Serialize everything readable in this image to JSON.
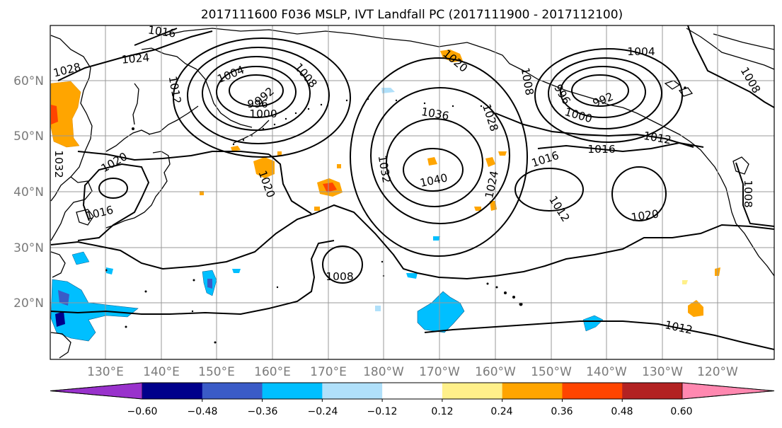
{
  "title": "2017111600 F036 MSLP, IVT Landfall PC (2017111900 - 2017112100)",
  "lat_labels": [
    "60°N",
    "50°N",
    "40°N",
    "30°N",
    "20°N"
  ],
  "lon_labels": [
    "130°E",
    "140°E",
    "150°E",
    "160°E",
    "170°E",
    "180°W",
    "170°W",
    "160°W",
    "150°W",
    "140°W",
    "130°W",
    "120°W"
  ],
  "colorbar": {
    "colors": [
      "#9932cc",
      "#00008b",
      "#3a5bc7",
      "#00bfff",
      "#b0e0fa",
      "#ffffff",
      "#fff08a",
      "#ffa500",
      "#ff4500",
      "#b22222",
      "#ff88b0"
    ],
    "ticks": [
      "−0.60",
      "−0.48",
      "−0.36",
      "−0.24",
      "−0.12",
      "0.12",
      "0.24",
      "0.36",
      "0.48",
      "0.60"
    ]
  },
  "contour_labels": {
    "c1016_top": "1016",
    "c1024": "1024",
    "c1028": "1028",
    "c1004_a": "1004",
    "c1008_a": "1008",
    "c992_a": "992",
    "c996_a": "996",
    "c1000_a": "1000",
    "c1012_a": "1012",
    "c1020_a": "1020",
    "c1016_a": "1016",
    "c1032_a": "1032",
    "c1020_b": "1020",
    "c1036": "1036",
    "c1032_b": "1032",
    "c1040": "1040",
    "c1028_b": "1028",
    "c1024_b": "1024",
    "c1020_c": "1020",
    "c1008_b": "1008",
    "c1008_c": "1008",
    "c996_b": "996",
    "c992_b": "992",
    "c1000_b": "1000",
    "c1012_b": "1012",
    "c1016_b": "1016",
    "c1016_c": "1016",
    "c1012_c": "1012",
    "c1020_d": "1020",
    "c1004_b": "1004",
    "c1008_d": "1008",
    "c1008_e": "1008",
    "c1012_d": "1012"
  }
}
